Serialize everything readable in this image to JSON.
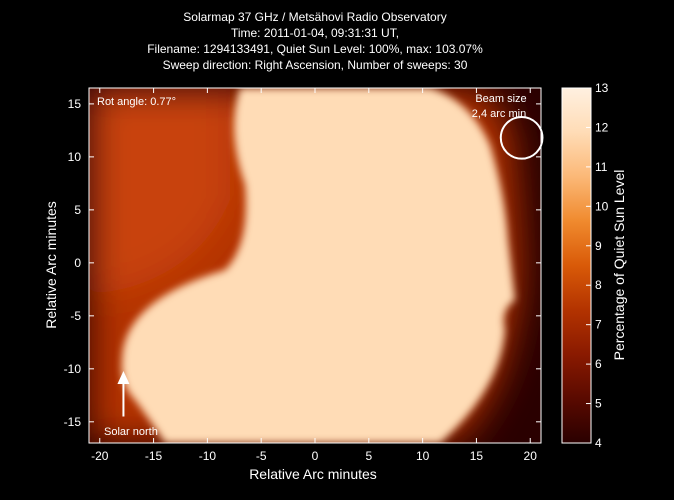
{
  "title_lines": [
    "Solarmap 37 GHz / Metsähovi Radio Observatory",
    "Time: 2011-01-04, 09:31:31 UT,",
    "Filename: 1294133491, Quiet Sun Level: 100%, max: 103.07%",
    "Sweep direction: Right Ascension, Number of sweeps: 30"
  ],
  "chart_data": {
    "type": "heatmap",
    "xlabel": "Relative Arc minutes",
    "ylabel": "Relative Arc minutes",
    "xlim": [
      -21,
      21
    ],
    "ylim": [
      -17,
      16.5
    ],
    "xticks": [
      -20,
      -15,
      -10,
      -5,
      0,
      5,
      10,
      15,
      20
    ],
    "yticks": [
      -15,
      -10,
      -5,
      0,
      5,
      10,
      15
    ],
    "colorbar": {
      "label": "Percentage of Quiet Sun Level",
      "range": [
        4,
        13
      ],
      "ticks": [
        4,
        5,
        6,
        7,
        8,
        9,
        10,
        11,
        12,
        13
      ],
      "colors": [
        "#2a0000",
        "#5a0a00",
        "#8a1a00",
        "#b33300",
        "#d95a08",
        "#f08a2e",
        "#fbb877",
        "#ffdcb6",
        "#fff0e0"
      ]
    },
    "annotations": {
      "rot_angle": "Rot angle: 0.77°",
      "beam_size_line1": "Beam size",
      "beam_size_line2": "2,4 arc min",
      "solar_north": "Solar north"
    },
    "beam": {
      "x": 19.2,
      "y": 11.8,
      "diameter_arcmin": 2.4
    },
    "north_arrow": {
      "x": -17.8,
      "y_from": -14.5,
      "y_to": -10.2
    }
  }
}
